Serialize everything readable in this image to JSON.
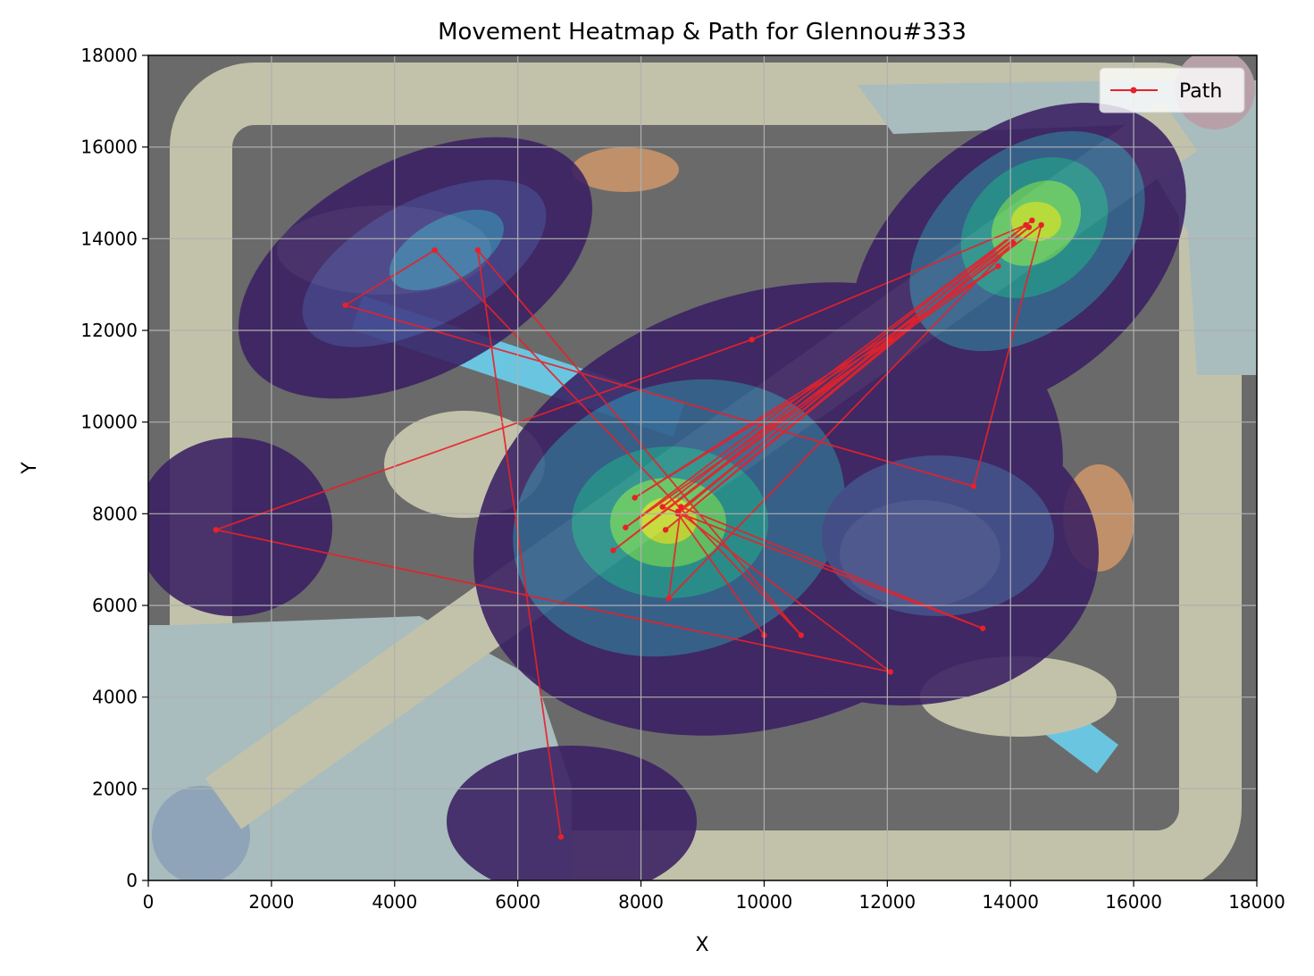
{
  "chart_data": {
    "type": "scatter",
    "title": "Movement Heatmap & Path for Glennou#333",
    "xlabel": "X",
    "ylabel": "Y",
    "xlim": [
      0,
      18000
    ],
    "ylim": [
      0,
      18000
    ],
    "xticks": [
      0,
      2000,
      4000,
      6000,
      8000,
      10000,
      12000,
      14000,
      16000,
      18000
    ],
    "yticks": [
      0,
      2000,
      4000,
      6000,
      8000,
      10000,
      12000,
      14000,
      16000,
      18000
    ],
    "grid": true,
    "legend": {
      "placement": "top-right",
      "entries": [
        "Path"
      ]
    },
    "series": [
      {
        "name": "Path",
        "color": "#e8202a",
        "style": "line-with-markers",
        "points": [
          [
            6700,
            950
          ],
          [
            5350,
            13750
          ],
          [
            10600,
            5350
          ],
          [
            4650,
            13750
          ],
          [
            3200,
            12550
          ],
          [
            13400,
            8600
          ],
          [
            14500,
            14300
          ],
          [
            7550,
            7200
          ],
          [
            14300,
            14250
          ],
          [
            8400,
            7650
          ],
          [
            14050,
            13900
          ],
          [
            8450,
            6150
          ],
          [
            8650,
            8150
          ],
          [
            13550,
            5500
          ],
          [
            8350,
            8150
          ],
          [
            14350,
            14400
          ],
          [
            7750,
            7700
          ],
          [
            13800,
            13400
          ],
          [
            7900,
            8350
          ],
          [
            12050,
            11800
          ],
          [
            8600,
            8050
          ],
          [
            12050,
            4550
          ],
          [
            1100,
            7650
          ],
          [
            9800,
            11800
          ],
          [
            14250,
            14300
          ],
          [
            8600,
            8000
          ],
          [
            10000,
            5350
          ]
        ]
      }
    ],
    "heatmap": {
      "colormap": "viridis",
      "hotspots": [
        {
          "x": 8000,
          "y": 7600,
          "intensity": 1.0
        },
        {
          "x": 14000,
          "y": 14000,
          "intensity": 1.0
        },
        {
          "x": 4500,
          "y": 13500,
          "intensity": 0.5
        },
        {
          "x": 1200,
          "y": 7500,
          "intensity": 0.3
        },
        {
          "x": 6700,
          "y": 1200,
          "intensity": 0.3
        },
        {
          "x": 12500,
          "y": 7000,
          "intensity": 0.45
        }
      ]
    },
    "background": {
      "description_free": true,
      "colors": {
        "water": "#708080",
        "path": "#c8c8b0",
        "base": "#a8bcc0",
        "river": "#6ac6e0"
      }
    }
  }
}
